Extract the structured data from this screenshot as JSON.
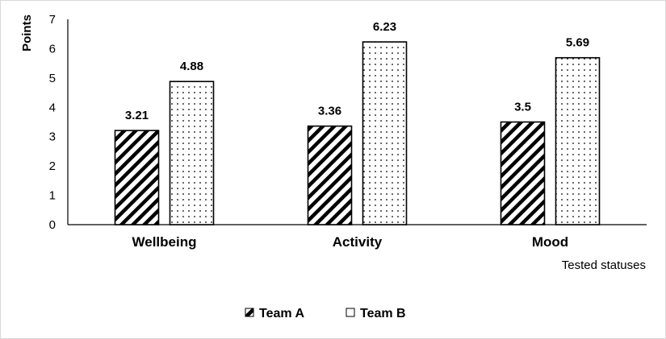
{
  "chart_data": {
    "type": "bar",
    "categories": [
      "Wellbeing",
      "Activity",
      "Mood"
    ],
    "series": [
      {
        "name": "Team A",
        "values": [
          3.21,
          3.36,
          3.5
        ],
        "pattern": "diagonal-hatch"
      },
      {
        "name": "Team B",
        "values": [
          4.88,
          6.23,
          5.69
        ],
        "pattern": "dots"
      }
    ],
    "xlabel": "Tested statuses",
    "ylabel": "Points",
    "ylim": [
      0,
      7
    ],
    "yticks": [
      "0",
      "1",
      "2",
      "3",
      "4",
      "5",
      "6",
      "7"
    ],
    "data_labels": [
      [
        "3.21",
        "3.36",
        "3.5"
      ],
      [
        "4.88",
        "6.23",
        "5.69"
      ]
    ],
    "grid": false,
    "legend_position": "bottom",
    "colors": {
      "bar_outline": "#000000",
      "bar_fill": "#ffffff",
      "axis": "#000000"
    }
  }
}
